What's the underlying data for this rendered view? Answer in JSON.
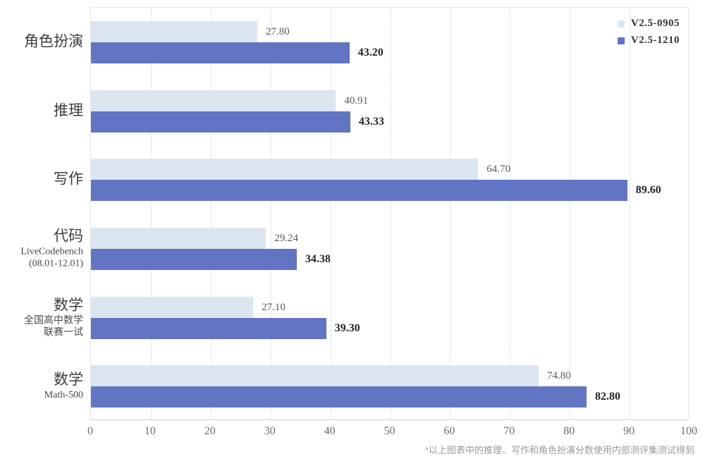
{
  "chart_data": {
    "type": "bar",
    "orientation": "horizontal",
    "title": "",
    "xlabel": "",
    "ylabel": "",
    "xlim": [
      0,
      100
    ],
    "xticks": [
      0,
      10,
      20,
      30,
      40,
      50,
      60,
      70,
      80,
      90,
      100
    ],
    "grid": "vertical-dotted",
    "legend_position": "top-right",
    "categories": [
      {
        "label": "角色扮演",
        "sublines": []
      },
      {
        "label": "推理",
        "sublines": []
      },
      {
        "label": "写作",
        "sublines": []
      },
      {
        "label": "代码",
        "sublines": [
          "LiveCodebench",
          "(08.01-12.01)"
        ]
      },
      {
        "label": "数学",
        "sublines": [
          "全国高中数学",
          "联赛一试"
        ]
      },
      {
        "label": "数学",
        "sublines": [
          "Math-500"
        ]
      }
    ],
    "series": [
      {
        "name": "V2.5-0905",
        "color": "#dce6f1",
        "label_color": "#595959",
        "label_bold": false,
        "values": [
          27.8,
          40.91,
          64.7,
          29.24,
          27.1,
          74.8
        ],
        "value_labels": [
          "27.80",
          "40.91",
          "64.70",
          "29.24",
          "27.10",
          "74.80"
        ]
      },
      {
        "name": "V2.5-1210",
        "color": "#6175c3",
        "label_color": "#262626",
        "label_bold": true,
        "values": [
          43.2,
          43.33,
          89.6,
          34.38,
          39.3,
          82.8
        ],
        "value_labels": [
          "43.20",
          "43.33",
          "89.60",
          "34.38",
          "39.30",
          "82.80"
        ]
      }
    ],
    "footnote": "*以上图表中的推理、写作和角色扮演分数使用内部测评集测试得到",
    "style": {
      "gridline_color": "#c8d4e8",
      "plot_border_color": "#e4e6ea",
      "axis_line_color": "#d2d4d8",
      "tick_label_color": "#6b6b6b",
      "footnote_color": "#9b9b9b"
    }
  }
}
